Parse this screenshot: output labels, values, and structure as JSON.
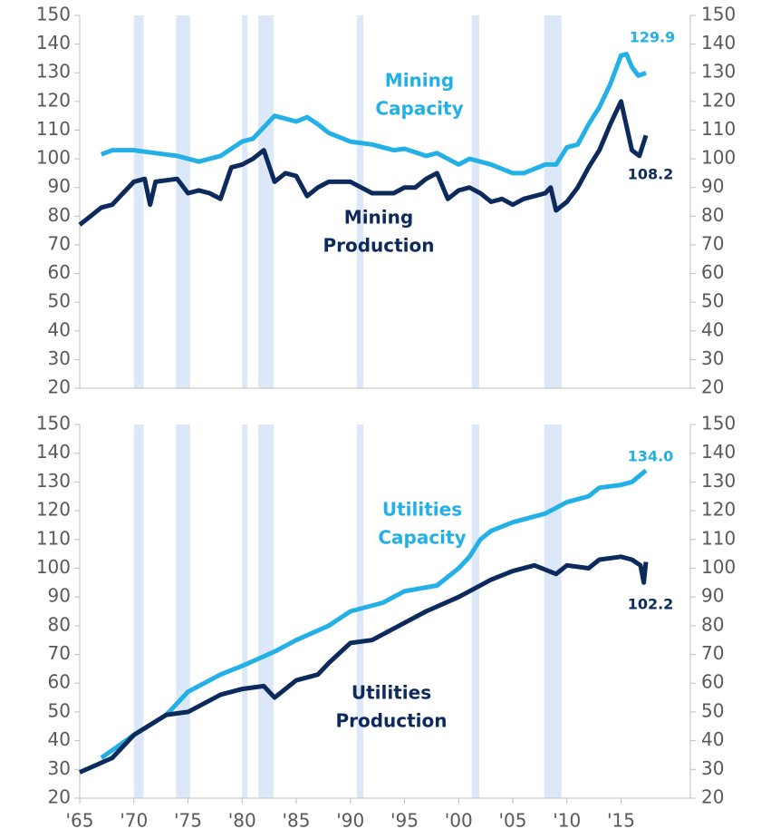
{
  "chart_data": [
    {
      "type": "line",
      "ylim": [
        20,
        150
      ],
      "yticks": [
        20,
        30,
        40,
        50,
        60,
        70,
        80,
        90,
        100,
        110,
        120,
        130,
        140,
        150
      ],
      "y2lim": [
        20,
        150
      ],
      "y2ticks": [
        20,
        30,
        40,
        50,
        60,
        70,
        80,
        90,
        100,
        110,
        120,
        130,
        140,
        150
      ],
      "xlim": [
        1965,
        2021.4
      ],
      "recessions": [
        [
          1970.0,
          1970.9
        ],
        [
          1973.9,
          1975.2
        ],
        [
          1980.0,
          1980.5
        ],
        [
          1981.5,
          1982.9
        ],
        [
          1990.6,
          1991.2
        ],
        [
          2001.2,
          2001.9
        ],
        [
          2007.9,
          2009.5
        ]
      ],
      "recession_color": "#dce8f7",
      "series": [
        {
          "name": "Mining Capacity",
          "lines": [
            "Mining",
            "Capacity"
          ],
          "color": "#22b0e6",
          "end_label": "129.9",
          "x": [
            1967,
            1968,
            1970,
            1972,
            1974,
            1976,
            1977,
            1978,
            1980,
            1981,
            1982,
            1983,
            1984,
            1985,
            1986,
            1987,
            1988,
            1990,
            1992,
            1994,
            1995,
            1997,
            1998,
            2000,
            2001,
            2002,
            2003,
            2005,
            2006,
            2008,
            2009,
            2010,
            2011,
            2012,
            2013,
            2014,
            2015,
            2015.5,
            2016,
            2016.6,
            2017.3
          ],
          "values": [
            101.5,
            103,
            103,
            102,
            101,
            99,
            100,
            101,
            106,
            107,
            111,
            115,
            114,
            113,
            114.5,
            112,
            109,
            106,
            105,
            103,
            103.5,
            101,
            102,
            98,
            100,
            99,
            98,
            95,
            95,
            98,
            98,
            104,
            105,
            112,
            118,
            126,
            136,
            136.5,
            132,
            129,
            129.9
          ]
        },
        {
          "name": "Mining Production",
          "lines": [
            "Mining",
            "Production"
          ],
          "color": "#0c2a5c",
          "end_label": "108.2",
          "x": [
            1965,
            1966,
            1967,
            1968,
            1969,
            1970,
            1971,
            1971.5,
            1972,
            1974,
            1975,
            1976,
            1977,
            1978,
            1979,
            1980,
            1981,
            1982,
            1983,
            1984,
            1985,
            1986,
            1987,
            1988,
            1990,
            1991,
            1992,
            1994,
            1995,
            1996,
            1997,
            1998,
            1999,
            2000,
            2001,
            2002,
            2003,
            2004,
            2005,
            2006,
            2007,
            2008,
            2008.5,
            2009,
            2010,
            2011,
            2012,
            2013,
            2014,
            2015,
            2016,
            2016.7,
            2017.3
          ],
          "values": [
            77,
            80,
            83,
            84,
            88,
            92,
            93,
            84,
            92,
            93,
            88,
            89,
            88,
            86,
            97,
            98,
            100,
            103,
            92,
            95,
            94,
            87,
            90,
            92,
            92,
            90,
            88,
            88,
            90,
            90,
            93,
            95,
            86,
            89,
            90,
            88,
            85,
            86,
            84,
            86,
            87,
            88,
            90,
            82,
            85,
            90,
            97,
            103,
            112,
            120,
            103,
            101,
            108.2
          ]
        }
      ]
    },
    {
      "type": "line",
      "ylim": [
        20,
        150
      ],
      "yticks": [
        20,
        30,
        40,
        50,
        60,
        70,
        80,
        90,
        100,
        110,
        120,
        130,
        140,
        150
      ],
      "y2lim": [
        20,
        150
      ],
      "y2ticks": [
        20,
        30,
        40,
        50,
        60,
        70,
        80,
        90,
        100,
        110,
        120,
        130,
        140,
        150
      ],
      "xlim": [
        1965,
        2021.4
      ],
      "xticks": [
        {
          "value": 1965,
          "label": "'65"
        },
        {
          "value": 1970,
          "label": "'70"
        },
        {
          "value": 1975,
          "label": "'75"
        },
        {
          "value": 1980,
          "label": "'80"
        },
        {
          "value": 1985,
          "label": "'85"
        },
        {
          "value": 1990,
          "label": "'90"
        },
        {
          "value": 1995,
          "label": "'95"
        },
        {
          "value": 2000,
          "label": "'00"
        },
        {
          "value": 2005,
          "label": "'05"
        },
        {
          "value": 2010,
          "label": "'10"
        },
        {
          "value": 2015,
          "label": "'15"
        }
      ],
      "recessions": [
        [
          1970.0,
          1970.9
        ],
        [
          1973.9,
          1975.2
        ],
        [
          1980.0,
          1980.5
        ],
        [
          1981.5,
          1982.9
        ],
        [
          1990.6,
          1991.2
        ],
        [
          2001.2,
          2001.9
        ],
        [
          2007.9,
          2009.5
        ]
      ],
      "recession_color": "#dce8f7",
      "series": [
        {
          "name": "Utilities Capacity",
          "lines": [
            "Utilities",
            "Capacity"
          ],
          "color": "#22b0e6",
          "end_label": "134.0",
          "x": [
            1967,
            1970,
            1973,
            1974,
            1975,
            1978,
            1980,
            1983,
            1985,
            1988,
            1990,
            1993,
            1995,
            1998,
            2000,
            2001,
            2002,
            2003,
            2005,
            2007,
            2008,
            2010,
            2012,
            2013,
            2015,
            2016,
            2017.3
          ],
          "values": [
            34,
            42,
            49,
            53,
            57,
            63,
            66,
            71,
            75,
            80,
            85,
            88,
            92,
            94,
            100,
            104,
            110,
            113,
            116,
            118,
            119,
            123,
            125,
            128,
            129,
            130,
            134.0
          ]
        },
        {
          "name": "Utilities Production",
          "lines": [
            "Utilities",
            "Production"
          ],
          "color": "#0c2a5c",
          "end_label": "102.2",
          "x": [
            1965,
            1968,
            1970,
            1973,
            1975,
            1978,
            1980,
            1982,
            1983,
            1985,
            1987,
            1988,
            1990,
            1992,
            1995,
            1997,
            2000,
            2003,
            2005,
            2007,
            2009,
            2010,
            2012,
            2013,
            2015,
            2016,
            2016.8,
            2017.1,
            2017.3
          ],
          "values": [
            29,
            34,
            42,
            49,
            50,
            56,
            58,
            59,
            55,
            61,
            63,
            67,
            74,
            75,
            81,
            85,
            90,
            96,
            99,
            101,
            98,
            101,
            100,
            103,
            104,
            103,
            101,
            95,
            102.2
          ]
        }
      ]
    }
  ]
}
